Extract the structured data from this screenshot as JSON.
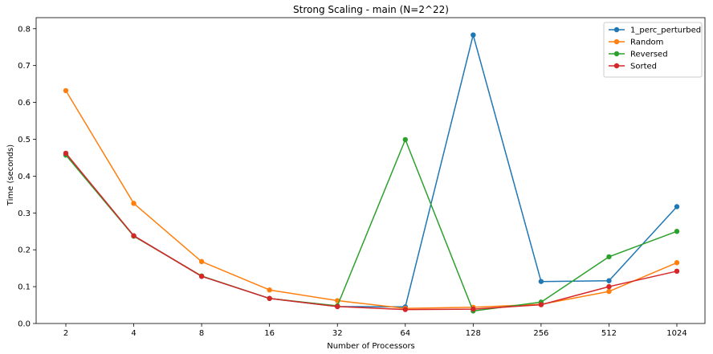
{
  "chart_data": {
    "type": "line",
    "title": "Strong Scaling - main (N=2^22)",
    "xlabel": "Number of Processors",
    "ylabel": "Time (seconds)",
    "categories": [
      "2",
      "4",
      "8",
      "16",
      "32",
      "64",
      "128",
      "256",
      "512",
      "1024"
    ],
    "x_scale": "log2",
    "ylim": [
      0,
      0.83
    ],
    "yticks": [
      0.0,
      0.1,
      0.2,
      0.3,
      0.4,
      0.5,
      0.6,
      0.7,
      0.8
    ],
    "grid": false,
    "legend_position": "top-right",
    "series": [
      {
        "name": "1_perc_perturbed",
        "color": "#1f77b4",
        "values": [
          0.458,
          0.238,
          0.128,
          0.068,
          0.046,
          0.045,
          0.783,
          0.114,
          0.116,
          0.317
        ]
      },
      {
        "name": "Random",
        "color": "#ff7f0e",
        "values": [
          0.632,
          0.326,
          0.168,
          0.091,
          0.062,
          0.041,
          0.044,
          0.052,
          0.087,
          0.165
        ]
      },
      {
        "name": "Reversed",
        "color": "#2ca02c",
        "values": [
          0.457,
          0.237,
          0.129,
          0.068,
          0.048,
          0.499,
          0.034,
          0.058,
          0.181,
          0.25
        ]
      },
      {
        "name": "Sorted",
        "color": "#d62728",
        "values": [
          0.462,
          0.238,
          0.128,
          0.068,
          0.046,
          0.038,
          0.039,
          0.051,
          0.1,
          0.142
        ]
      }
    ]
  }
}
